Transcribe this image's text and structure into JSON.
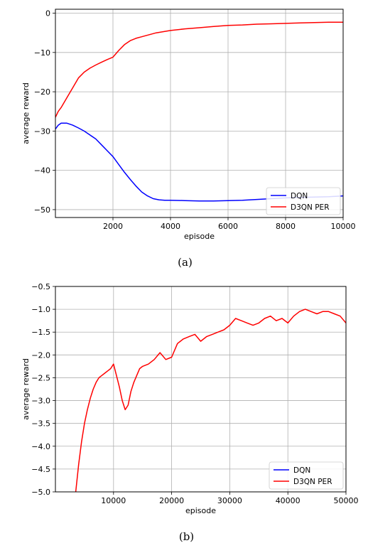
{
  "chart_data": [
    {
      "type": "line",
      "caption": "(a)",
      "xlabel": "episode",
      "ylabel": "average reward",
      "xlim": [
        0,
        10000
      ],
      "ylim": [
        -52,
        1
      ],
      "xticks": [
        2000,
        4000,
        6000,
        8000,
        10000
      ],
      "xtick_labels": [
        "2000",
        "4000",
        "6000",
        "8000",
        "10000"
      ],
      "yticks": [
        0,
        -10,
        -20,
        -30,
        -40,
        -50
      ],
      "ytick_labels": [
        "0",
        "−10",
        "−20",
        "−30",
        "−40",
        "−50"
      ],
      "grid": true,
      "legend_position": "lower-right",
      "series": [
        {
          "name": "DQN",
          "color": "#0000ff",
          "x": [
            0,
            100,
            200,
            400,
            600,
            800,
            1000,
            1200,
            1400,
            1600,
            1800,
            2000,
            2200,
            2400,
            2600,
            2800,
            3000,
            3200,
            3400,
            3600,
            3800,
            4000,
            4500,
            5000,
            5500,
            6000,
            6500,
            7000,
            7500,
            8000,
            8500,
            9000,
            9500,
            10000
          ],
          "y": [
            -29.5,
            -28.5,
            -28.0,
            -28.0,
            -28.5,
            -29.2,
            -30.0,
            -31.0,
            -32.0,
            -33.5,
            -35.0,
            -36.5,
            -38.5,
            -40.5,
            -42.3,
            -44.0,
            -45.5,
            -46.5,
            -47.2,
            -47.5,
            -47.6,
            -47.6,
            -47.7,
            -47.8,
            -47.8,
            -47.7,
            -47.6,
            -47.4,
            -47.2,
            -47.0,
            -46.9,
            -46.8,
            -46.7,
            -46.5
          ]
        },
        {
          "name": "D3QN PER",
          "color": "#ff0000",
          "x": [
            0,
            100,
            200,
            400,
            600,
            800,
            1000,
            1200,
            1400,
            1600,
            1800,
            2000,
            2200,
            2400,
            2600,
            2800,
            3000,
            3500,
            4000,
            4500,
            5000,
            5500,
            6000,
            6500,
            7000,
            7500,
            8000,
            8500,
            9000,
            9500,
            10000
          ],
          "y": [
            -26.5,
            -25.0,
            -24.0,
            -21.5,
            -19.0,
            -16.5,
            -15.0,
            -14.0,
            -13.2,
            -12.5,
            -11.8,
            -11.2,
            -9.5,
            -8.0,
            -7.0,
            -6.4,
            -6.0,
            -5.0,
            -4.4,
            -4.0,
            -3.7,
            -3.4,
            -3.1,
            -3.0,
            -2.8,
            -2.7,
            -2.6,
            -2.5,
            -2.4,
            -2.3,
            -2.3
          ]
        }
      ]
    },
    {
      "type": "line",
      "caption": "(b)",
      "xlabel": "episode",
      "ylabel": "average reward",
      "xlim": [
        0,
        50000
      ],
      "ylim": [
        -5.0,
        -0.5
      ],
      "xticks": [
        10000,
        20000,
        30000,
        40000,
        50000
      ],
      "xtick_labels": [
        "10000",
        "20000",
        "30000",
        "40000",
        "50000"
      ],
      "yticks": [
        -0.5,
        -1.0,
        -1.5,
        -2.0,
        -2.5,
        -3.0,
        -3.5,
        -4.0,
        -4.5,
        -5.0
      ],
      "ytick_labels": [
        "−0.5",
        "−1.0",
        "−1.5",
        "−2.0",
        "−2.5",
        "−3.0",
        "−3.5",
        "−4.0",
        "−4.5",
        "−5.0"
      ],
      "grid": true,
      "legend_position": "lower-right",
      "series": [
        {
          "name": "DQN",
          "color": "#0000ff",
          "x": [],
          "y": []
        },
        {
          "name": "D3QN PER",
          "color": "#ff0000",
          "x": [
            3500,
            4000,
            4500,
            5000,
            5500,
            6000,
            6500,
            7000,
            7500,
            8000,
            8500,
            9000,
            9500,
            10000,
            10500,
            11000,
            11500,
            12000,
            12500,
            13000,
            13500,
            14000,
            14500,
            15000,
            16000,
            17000,
            18000,
            19000,
            20000,
            21000,
            22000,
            23000,
            24000,
            25000,
            26000,
            27000,
            28000,
            29000,
            30000,
            31000,
            32000,
            33000,
            34000,
            35000,
            36000,
            37000,
            38000,
            39000,
            40000,
            41000,
            42000,
            43000,
            44000,
            45000,
            46000,
            47000,
            48000,
            49000,
            50000
          ],
          "y": [
            -5.0,
            -4.4,
            -3.9,
            -3.5,
            -3.2,
            -2.95,
            -2.75,
            -2.6,
            -2.5,
            -2.45,
            -2.4,
            -2.35,
            -2.3,
            -2.2,
            -2.45,
            -2.7,
            -3.0,
            -3.2,
            -3.1,
            -2.8,
            -2.6,
            -2.45,
            -2.3,
            -2.25,
            -2.2,
            -2.1,
            -1.95,
            -2.1,
            -2.05,
            -1.75,
            -1.65,
            -1.6,
            -1.55,
            -1.7,
            -1.6,
            -1.55,
            -1.5,
            -1.45,
            -1.35,
            -1.2,
            -1.25,
            -1.3,
            -1.35,
            -1.3,
            -1.2,
            -1.15,
            -1.25,
            -1.2,
            -1.3,
            -1.15,
            -1.05,
            -1.0,
            -1.05,
            -1.1,
            -1.05,
            -1.05,
            -1.1,
            -1.15,
            -1.3
          ]
        }
      ]
    }
  ]
}
